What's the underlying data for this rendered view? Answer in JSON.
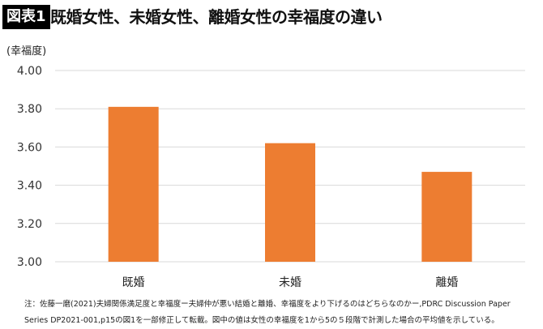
{
  "header": {
    "badge": "図表1",
    "title": "既婚女性、未婚女性、離婚女性の幸福度の違い"
  },
  "chart_data": {
    "type": "bar",
    "title": "既婚女性、未婚女性、離婚女性の幸福度の違い",
    "ylabel": "(幸福度)",
    "xlabel": "",
    "categories": [
      "既婚",
      "未婚",
      "離婚"
    ],
    "values": [
      3.81,
      3.62,
      3.47
    ],
    "ylim": [
      3.0,
      4.0
    ],
    "yticks": [
      "3.00",
      "3.20",
      "3.40",
      "3.60",
      "3.80",
      "4.00"
    ],
    "grid": true,
    "bar_color": "#ED7D31"
  },
  "note": {
    "line1": "注：佐藤一磨(2021)夫婦関係満足度と幸福度ー夫婦仲が悪い結婚と離婚、幸福度をより下げるのはどちらなのかー,PDRC Discussion Paper",
    "line2": "Series DP2021-001,p15の図1を一部修正して転載。図中の値は女性の幸福度を1から5の５段階で計測した場合の平均値を示している。"
  }
}
